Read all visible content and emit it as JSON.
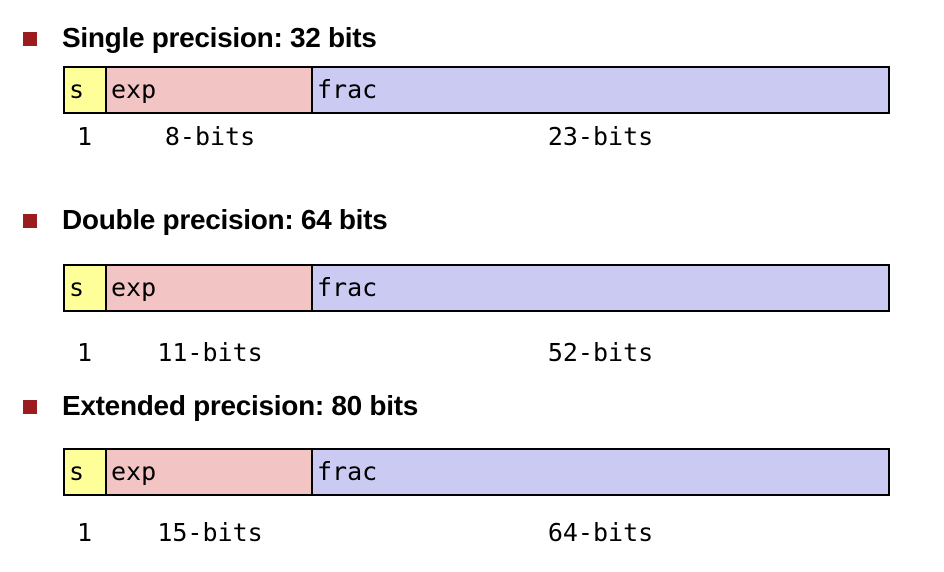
{
  "colors": {
    "bullet": "#9b1c1c",
    "sign": "#ffff99",
    "exponent": "#f2c4c4",
    "fraction": "#cacaf2"
  },
  "formats": [
    {
      "heading": "Single precision: 32 bits",
      "fields": {
        "s": "s",
        "exp": "exp",
        "frac": "frac"
      },
      "sizes": {
        "s": "1",
        "exp": "8-bits",
        "frac": "23-bits"
      }
    },
    {
      "heading": "Double precision: 64 bits",
      "fields": {
        "s": "s",
        "exp": "exp",
        "frac": "frac"
      },
      "sizes": {
        "s": "1",
        "exp": "11-bits",
        "frac": "52-bits"
      }
    },
    {
      "heading": "Extended precision: 80 bits",
      "fields": {
        "s": "s",
        "exp": "exp",
        "frac": "frac"
      },
      "sizes": {
        "s": "1",
        "exp": "15-bits",
        "frac": "64-bits"
      }
    }
  ]
}
